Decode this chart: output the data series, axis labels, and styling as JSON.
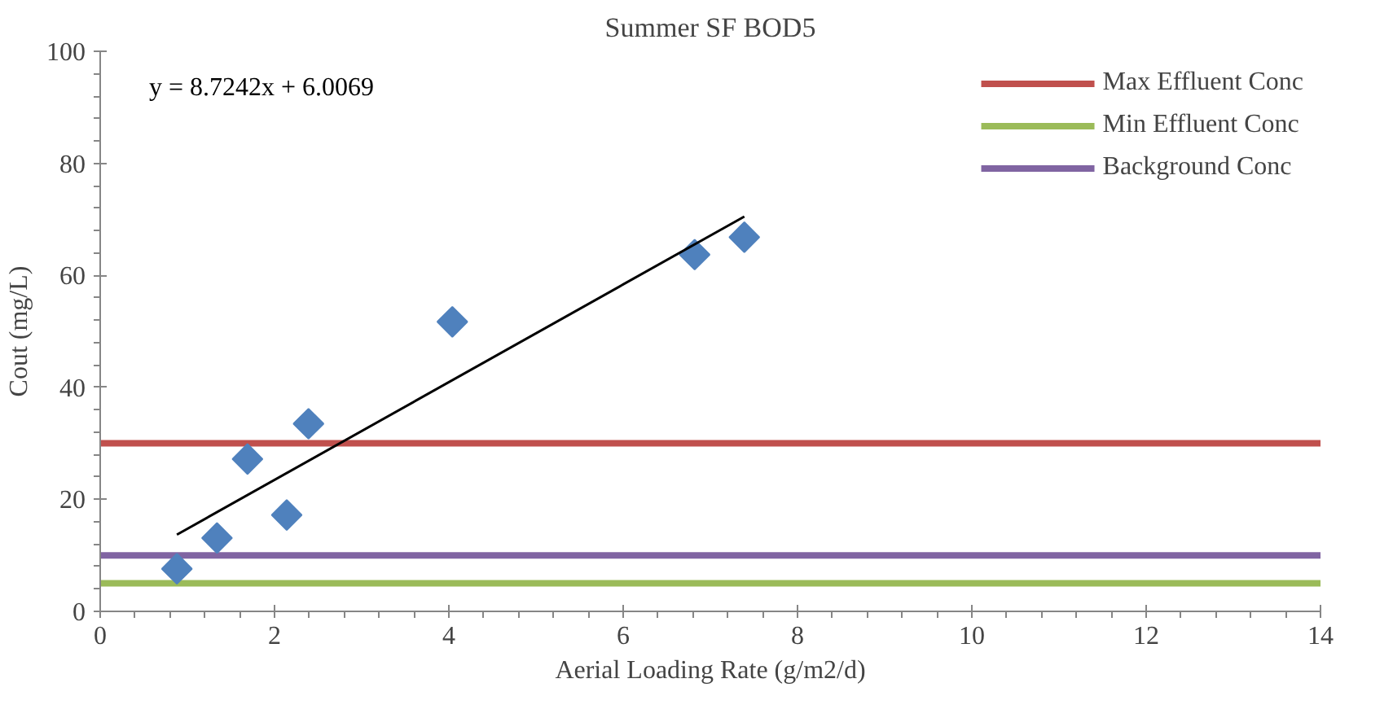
{
  "chart_data": {
    "type": "scatter",
    "title": "Summer SF BOD5",
    "xlabel": "Aerial Loading Rate (g/m2/d)",
    "ylabel": "Cout (mg/L)",
    "xlim": [
      0,
      14
    ],
    "xticks": [
      0,
      2,
      4,
      6,
      8,
      10,
      12,
      14
    ],
    "ylim": [
      0,
      100
    ],
    "yticks": [
      0,
      20,
      40,
      60,
      80,
      100
    ],
    "grid": false,
    "legend": "top right",
    "marker": "diamond",
    "series": [
      {
        "color": "#4f81bd",
        "x": [
          0.88,
          1.34,
          1.69,
          2.14,
          2.39,
          4.04,
          6.82,
          7.39
        ],
        "values": [
          7.6,
          13.1,
          27.2,
          17.2,
          33.5,
          51.7,
          63.7,
          66.8
        ]
      },
      {
        "type": "line",
        "color": "#000000",
        "x": [
          0.88,
          7.39
        ],
        "values": [
          13.7,
          70.5
        ],
        "marker": "none"
      }
    ],
    "ref_lines": [
      {
        "axis": "y",
        "value": 30,
        "label": "Max Effluent Conc",
        "color": "#c0504d"
      },
      {
        "axis": "y",
        "value": 5,
        "label": "Min Effluent Conc",
        "color": "#9bbb59"
      },
      {
        "axis": "y",
        "value": 10,
        "label": "Background Conc",
        "color": "#8064a2"
      }
    ],
    "annotations": [
      "y = 8.7242x + 6.0069"
    ]
  }
}
